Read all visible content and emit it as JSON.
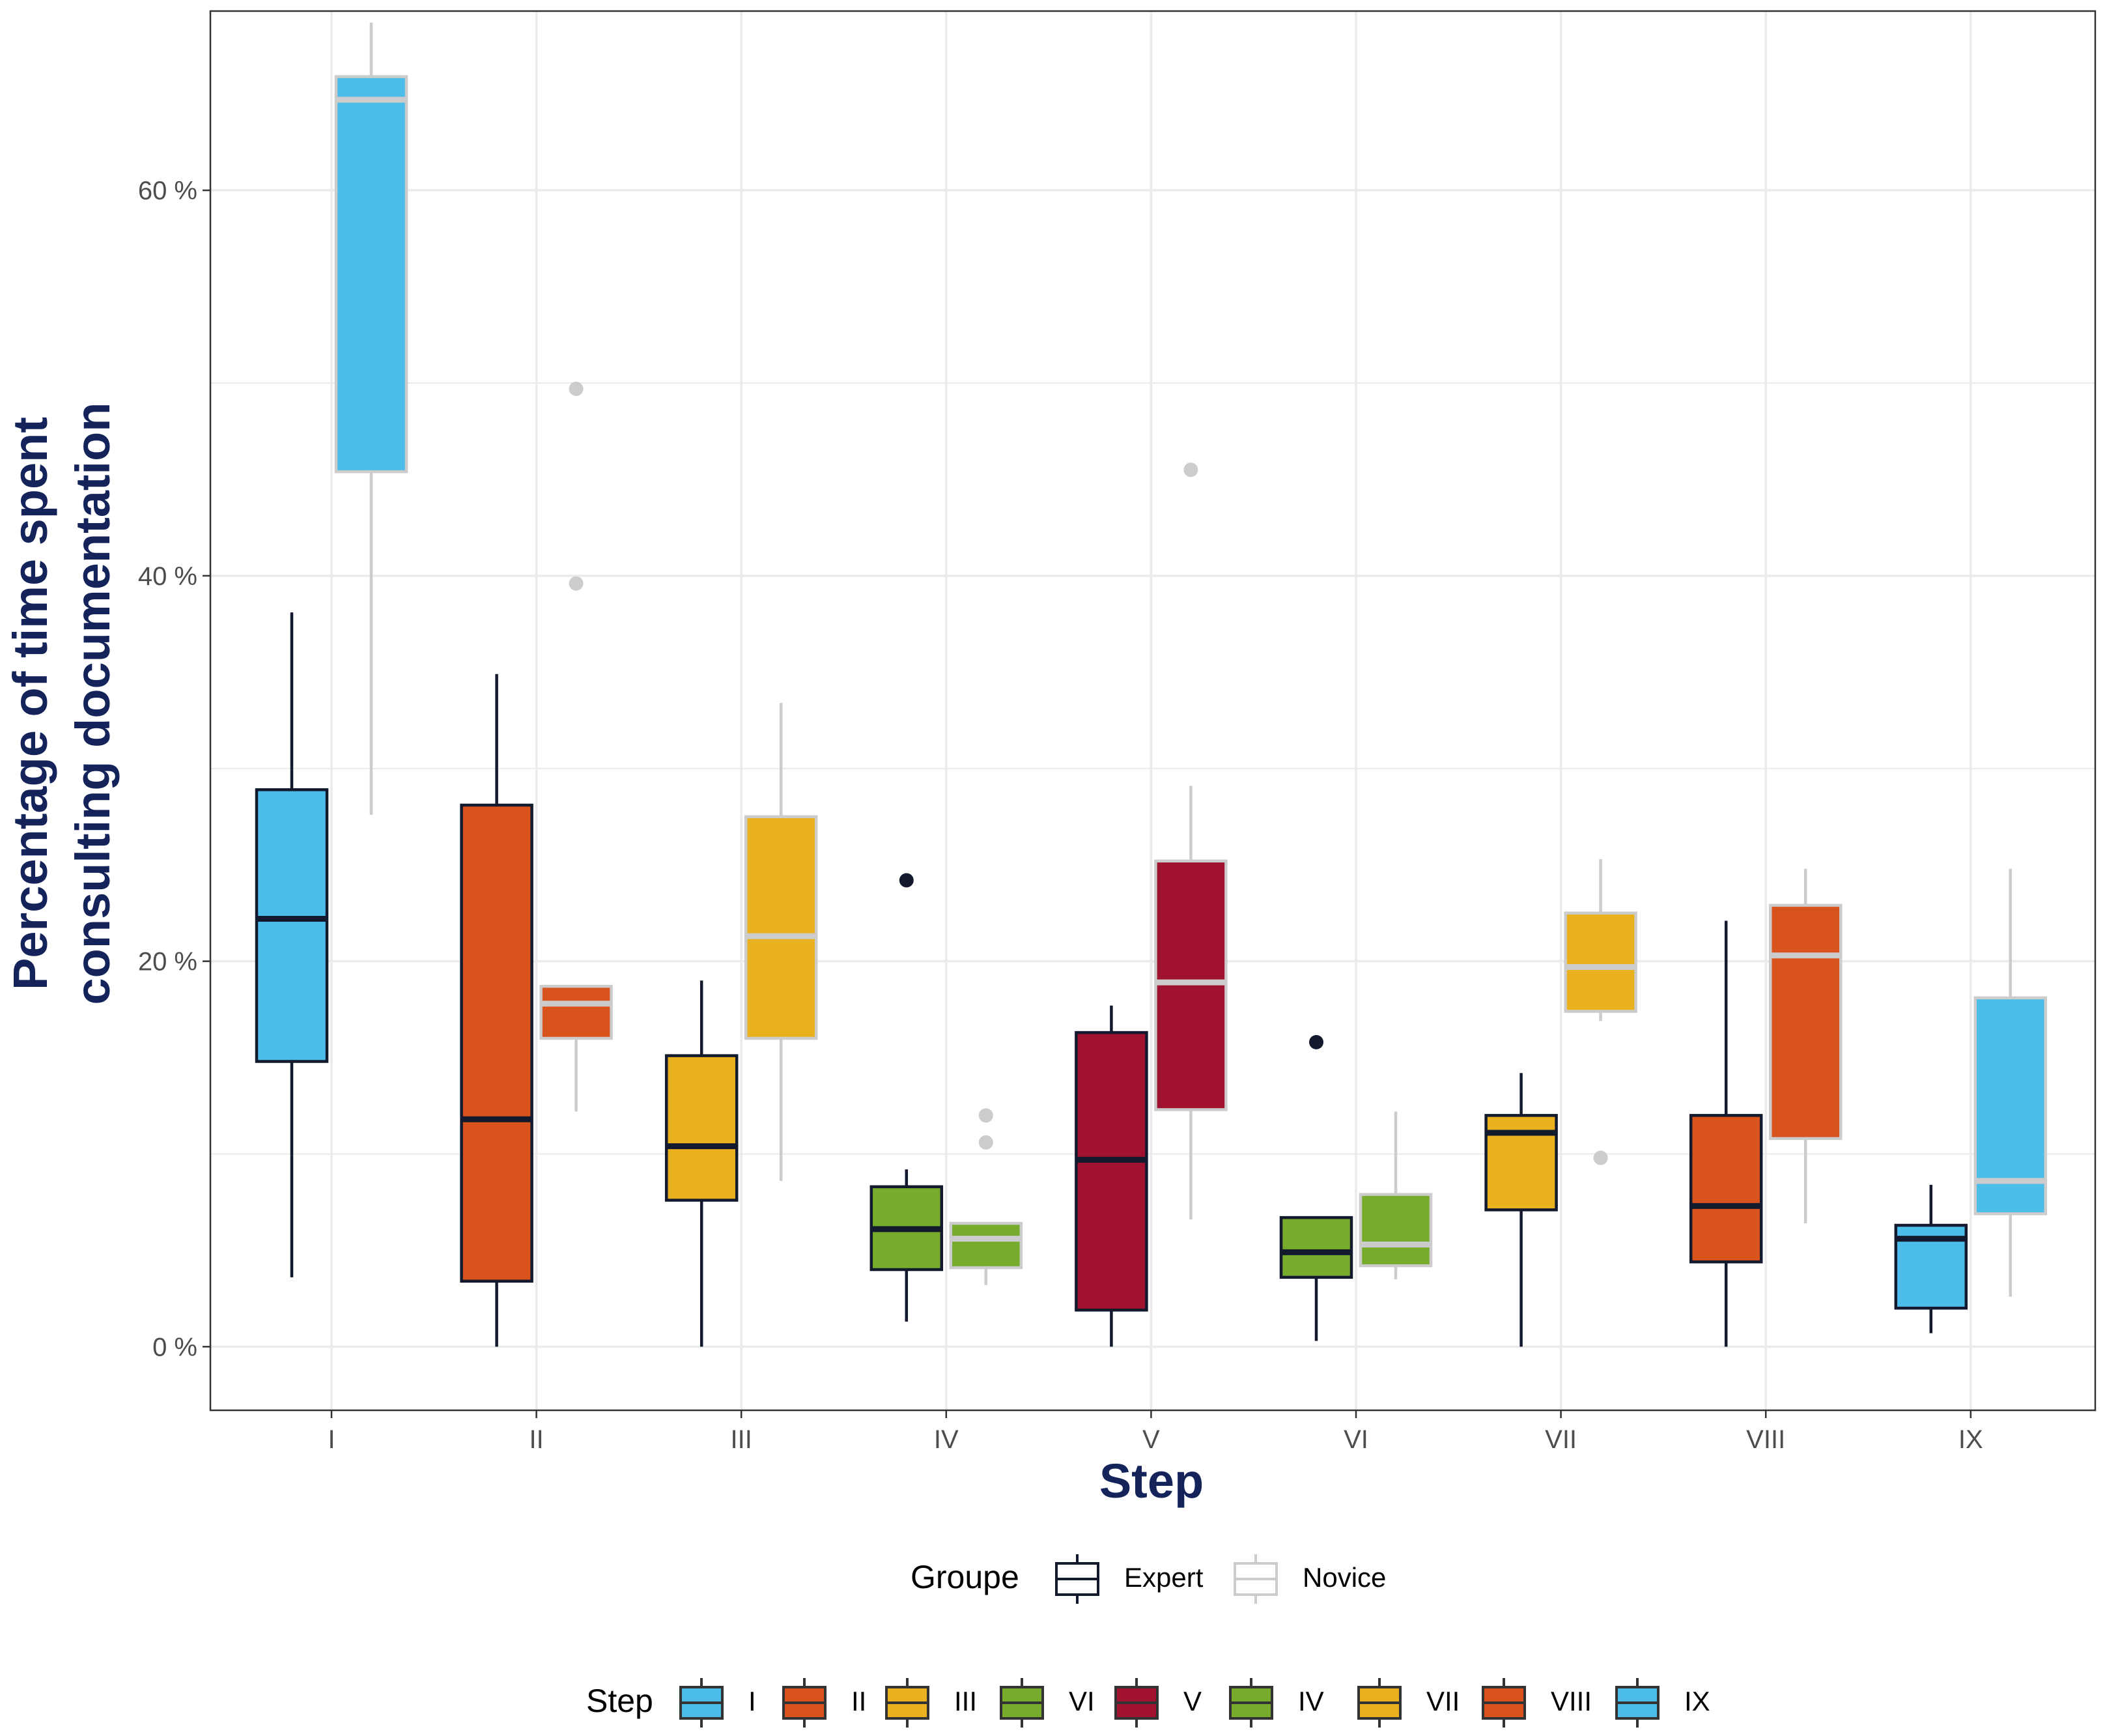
{
  "chart_data": {
    "type": "boxplot",
    "title": "",
    "xlabel": "Step",
    "ylabel_lines": [
      "Percentage of time spent",
      "consulting documentation"
    ],
    "ylim": [
      -3.3,
      69.3
    ],
    "y_ticks": [
      {
        "value": 0,
        "label": "0 %"
      },
      {
        "value": 20,
        "label": "20 %"
      },
      {
        "value": 40,
        "label": "40 %"
      },
      {
        "value": 60,
        "label": "60 %"
      }
    ],
    "grid": true,
    "categories": [
      "I",
      "II",
      "III",
      "IV",
      "V",
      "VI",
      "VII",
      "VIII",
      "IX"
    ],
    "fill_colors": {
      "I": "#4cbce9",
      "II": "#d9531c",
      "III": "#eab11f",
      "IV": "#76ab2c",
      "V": "#a01230",
      "VI": "#76ab2c",
      "VII": "#eab11f",
      "VIII": "#d9531c",
      "IX": "#4cbce9"
    },
    "groups": [
      {
        "name": "Expert",
        "line_color": "#141a2e"
      },
      {
        "name": "Novice",
        "line_color": "#cccccc"
      }
    ],
    "boxes": [
      {
        "step": "I",
        "group": "Expert",
        "min": 3.6,
        "q1": 14.8,
        "median": 22.2,
        "q3": 28.9,
        "max": 38.1,
        "outliers": []
      },
      {
        "step": "I",
        "group": "Novice",
        "min": 27.6,
        "q1": 45.4,
        "median": 64.7,
        "q3": 65.9,
        "max": 68.7,
        "outliers": []
      },
      {
        "step": "II",
        "group": "Expert",
        "min": 0.0,
        "q1": 3.4,
        "median": 11.8,
        "q3": 28.1,
        "max": 34.9,
        "outliers": []
      },
      {
        "step": "II",
        "group": "Novice",
        "min": 12.2,
        "q1": 16.0,
        "median": 17.8,
        "q3": 18.7,
        "max": 18.7,
        "outliers": [
          39.6,
          49.7
        ]
      },
      {
        "step": "III",
        "group": "Expert",
        "min": 0.0,
        "q1": 7.6,
        "median": 10.4,
        "q3": 15.1,
        "max": 19.0,
        "outliers": []
      },
      {
        "step": "III",
        "group": "Novice",
        "min": 8.6,
        "q1": 16.0,
        "median": 21.3,
        "q3": 27.5,
        "max": 33.4,
        "outliers": []
      },
      {
        "step": "IV",
        "group": "Expert",
        "min": 1.3,
        "q1": 4.0,
        "median": 6.1,
        "q3": 8.3,
        "max": 9.2,
        "outliers": [
          24.2
        ]
      },
      {
        "step": "IV",
        "group": "Novice",
        "min": 3.2,
        "q1": 4.1,
        "median": 5.6,
        "q3": 6.4,
        "max": 6.4,
        "outliers": [
          10.6,
          12.0
        ]
      },
      {
        "step": "V",
        "group": "Expert",
        "min": 0.0,
        "q1": 1.9,
        "median": 9.7,
        "q3": 16.3,
        "max": 17.7,
        "outliers": []
      },
      {
        "step": "V",
        "group": "Novice",
        "min": 6.6,
        "q1": 12.3,
        "median": 18.9,
        "q3": 25.2,
        "max": 29.1,
        "outliers": [
          45.5
        ]
      },
      {
        "step": "VI",
        "group": "Expert",
        "min": 0.3,
        "q1": 3.6,
        "median": 4.9,
        "q3": 6.7,
        "max": 6.7,
        "outliers": [
          15.8
        ]
      },
      {
        "step": "VI",
        "group": "Novice",
        "min": 3.5,
        "q1": 4.2,
        "median": 5.3,
        "q3": 7.9,
        "max": 12.2,
        "outliers": []
      },
      {
        "step": "VII",
        "group": "Expert",
        "min": 0.0,
        "q1": 7.1,
        "median": 11.1,
        "q3": 12.0,
        "max": 14.2,
        "outliers": []
      },
      {
        "step": "VII",
        "group": "Novice",
        "min": 16.9,
        "q1": 17.4,
        "median": 19.7,
        "q3": 22.5,
        "max": 25.3,
        "outliers": [
          9.8
        ]
      },
      {
        "step": "VIII",
        "group": "Expert",
        "min": 0.0,
        "q1": 4.4,
        "median": 7.3,
        "q3": 12.0,
        "max": 22.1,
        "outliers": []
      },
      {
        "step": "VIII",
        "group": "Novice",
        "min": 6.4,
        "q1": 10.8,
        "median": 20.3,
        "q3": 22.9,
        "max": 24.8,
        "outliers": []
      },
      {
        "step": "IX",
        "group": "Expert",
        "min": 0.7,
        "q1": 2.0,
        "median": 5.6,
        "q3": 6.3,
        "max": 8.4,
        "outliers": []
      },
      {
        "step": "IX",
        "group": "Novice",
        "min": 2.6,
        "q1": 6.9,
        "median": 8.6,
        "q3": 18.1,
        "max": 24.8,
        "outliers": []
      }
    ],
    "legend_groupe": {
      "title": "Groupe",
      "entries": [
        "Expert",
        "Novice"
      ]
    },
    "legend_step": {
      "title": "Step",
      "entries": [
        {
          "label": "I",
          "color": "#4cbce9"
        },
        {
          "label": "II",
          "color": "#d9531c"
        },
        {
          "label": "III",
          "color": "#eab11f"
        },
        {
          "label": "VI",
          "color": "#76ab2c"
        },
        {
          "label": "V",
          "color": "#a01230"
        },
        {
          "label": "IV",
          "color": "#76ab2c"
        },
        {
          "label": "VII",
          "color": "#eab11f"
        },
        {
          "label": "VIII",
          "color": "#d9531c"
        },
        {
          "label": "IX",
          "color": "#4cbce9"
        }
      ]
    }
  }
}
